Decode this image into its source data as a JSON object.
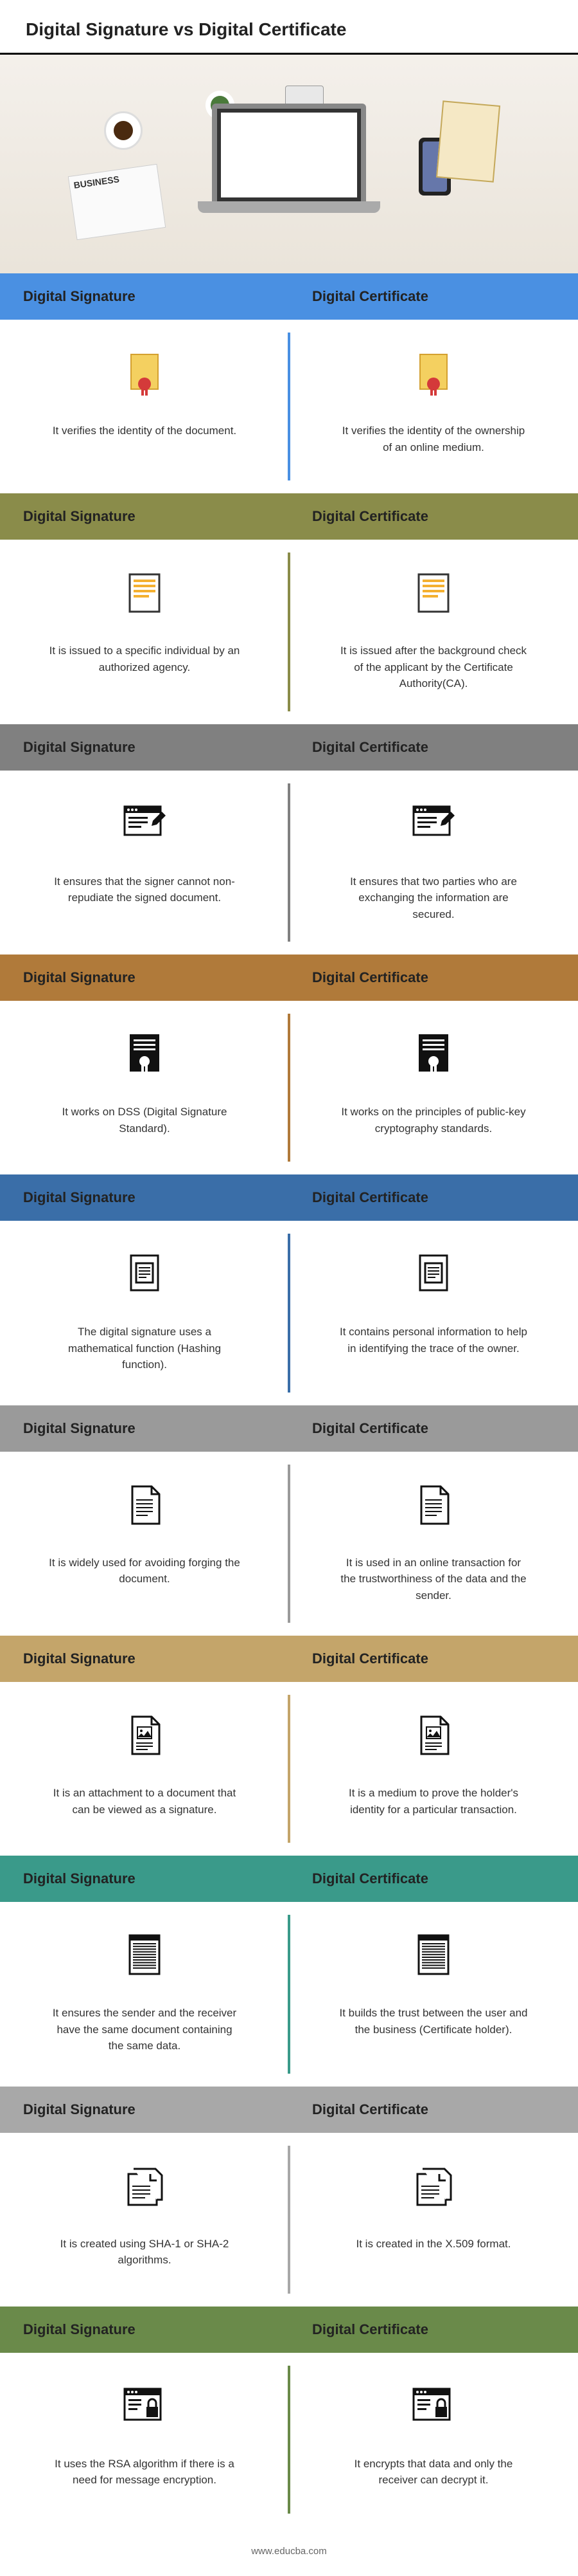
{
  "title": "Digital Signature vs Digital Certificate",
  "footer": "www.educba.com",
  "columns": {
    "left": "Digital Signature",
    "right": "Digital Certificate"
  },
  "hero_newspaper": "BUSINESS",
  "sections": [
    {
      "header_bg": "#4a90e2",
      "divider": "#4a90e2",
      "icon": "badge-yellow",
      "left": "It verifies the identity of the document.",
      "right": "It verifies the identity of the ownership of an online medium."
    },
    {
      "header_bg": "#8a8c4a",
      "divider": "#8a8c4a",
      "icon": "doc-yellow-lines",
      "left": "It is issued to a specific individual by an authorized agency.",
      "right": "It is issued after the background check of the applicant by the Certificate Authority(CA)."
    },
    {
      "header_bg": "#808080",
      "divider": "#808080",
      "icon": "browser-sign",
      "left": "It ensures that the signer cannot non-repudiate the signed document.",
      "right": "It ensures that two parties who are exchanging the information are secured."
    },
    {
      "header_bg": "#b07a3a",
      "divider": "#b07a3a",
      "icon": "cert-black",
      "left": "It works on DSS (Digital Signature Standard).",
      "right": "It works on the principles of public-key cryptography standards."
    },
    {
      "header_bg": "#3a6ea8",
      "divider": "#3a6ea8",
      "icon": "doc-text",
      "left": "The digital signature uses a mathematical function (Hashing function).",
      "right": "It contains personal information to help in identifying the trace of the owner."
    },
    {
      "header_bg": "#9a9a9a",
      "divider": "#9a9a9a",
      "icon": "doc-plain",
      "left": "It is widely used for avoiding forging the document.",
      "right": "It is used in an online transaction for the trustworthiness of the data and the sender."
    },
    {
      "header_bg": "#c4a56a",
      "divider": "#c4a56a",
      "icon": "doc-image",
      "left": "It is an attachment to a document that can be viewed as a signature.",
      "right": "It is a medium to prove the holder's identity for a particular transaction."
    },
    {
      "header_bg": "#3a9a8a",
      "divider": "#3a9a8a",
      "icon": "doc-dense",
      "left": "It ensures the sender and the receiver have the same document containing the same data.",
      "right": "It builds the trust between the user and the business (Certificate holder)."
    },
    {
      "header_bg": "#a8a8a8",
      "divider": "#a8a8a8",
      "icon": "doc-stack",
      "left": "It is created using SHA-1 or SHA-2 algorithms.",
      "right": "It is created in the X.509 format."
    },
    {
      "header_bg": "#6a8a4a",
      "divider": "#6a8a4a",
      "icon": "browser-lock",
      "left": "It uses the RSA algorithm if there is a need for message encryption.",
      "right": "It encrypts that data and only the receiver can decrypt it."
    }
  ]
}
